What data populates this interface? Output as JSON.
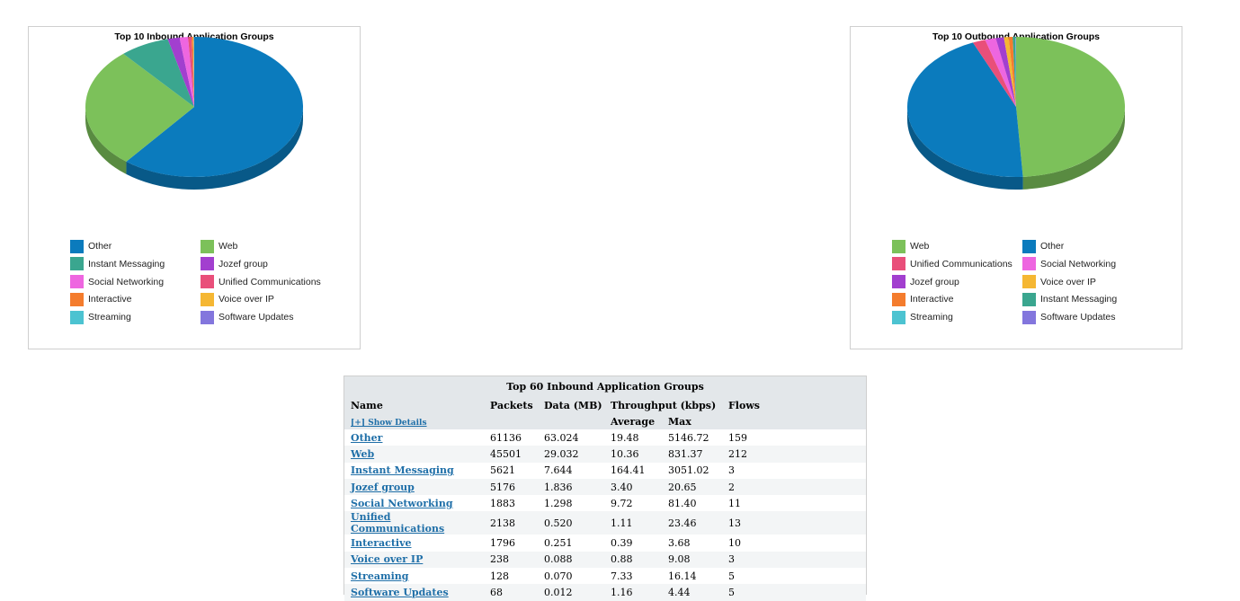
{
  "colors": {
    "Other": "#0b7bbd",
    "Web": "#7cc15a",
    "Instant Messaging": "#3aa68f",
    "Jozef group": "#a23fcf",
    "Social Networking": "#ee66e0",
    "Unified Communications": "#e94f7a",
    "Interactive": "#f47c2d",
    "Voice over IP": "#f5b733",
    "Streaming": "#4cc3d1",
    "Software Updates": "#8376dd"
  },
  "chart_data": [
    {
      "type": "pie",
      "title": "Top 10 Inbound Application Groups",
      "labels": [
        "Other",
        "Web",
        "Instant Messaging",
        "Jozef group",
        "Social Networking",
        "Unified Communications",
        "Interactive",
        "Voice over IP",
        "Streaming",
        "Software Updates"
      ],
      "values": [
        63.024,
        29.032,
        7.644,
        1.836,
        1.298,
        0.52,
        0.251,
        0.088,
        0.07,
        0.012
      ],
      "legend_position": "bottom"
    },
    {
      "type": "pie",
      "title": "Top 10 Outbound Application Groups",
      "labels": [
        "Web",
        "Other",
        "Unified Communications",
        "Social Networking",
        "Jozef group",
        "Voice over IP",
        "Interactive",
        "Instant Messaging",
        "Streaming",
        "Software Updates"
      ],
      "values": [
        49.0,
        44.5,
        1.9,
        1.6,
        1.2,
        0.7,
        0.6,
        0.4,
        0.05,
        0.05
      ],
      "legend_position": "bottom"
    }
  ],
  "table": {
    "title": "Top 60 Inbound Application Groups",
    "headers": {
      "name": "Name",
      "packets": "Packets",
      "data": "Data (MB)",
      "throughput": "Throughput (kbps)",
      "flows": "Flows",
      "average": "Average",
      "max": "Max"
    },
    "show_details": "[+] Show Details",
    "rows": [
      {
        "name": "Other",
        "packets": "61136",
        "data": "63.024",
        "avg": "19.48",
        "max": "5146.72",
        "flows": "159"
      },
      {
        "name": "Web",
        "packets": "45501",
        "data": "29.032",
        "avg": "10.36",
        "max": "831.37",
        "flows": "212"
      },
      {
        "name": "Instant Messaging",
        "packets": "5621",
        "data": "7.644",
        "avg": "164.41",
        "max": "3051.02",
        "flows": "3"
      },
      {
        "name": "Jozef group",
        "packets": "5176",
        "data": "1.836",
        "avg": "3.40",
        "max": "20.65",
        "flows": "2"
      },
      {
        "name": "Social Networking",
        "packets": "1883",
        "data": "1.298",
        "avg": "9.72",
        "max": "81.40",
        "flows": "11"
      },
      {
        "name": "Unified Communications",
        "packets": "2138",
        "data": "0.520",
        "avg": "1.11",
        "max": "23.46",
        "flows": "13"
      },
      {
        "name": "Interactive",
        "packets": "1796",
        "data": "0.251",
        "avg": "0.39",
        "max": "3.68",
        "flows": "10"
      },
      {
        "name": "Voice over IP",
        "packets": "238",
        "data": "0.088",
        "avg": "0.88",
        "max": "9.08",
        "flows": "3"
      },
      {
        "name": "Streaming",
        "packets": "128",
        "data": "0.070",
        "avg": "7.33",
        "max": "16.14",
        "flows": "5"
      },
      {
        "name": "Software Updates",
        "packets": "68",
        "data": "0.012",
        "avg": "1.16",
        "max": "4.44",
        "flows": "5"
      }
    ]
  }
}
